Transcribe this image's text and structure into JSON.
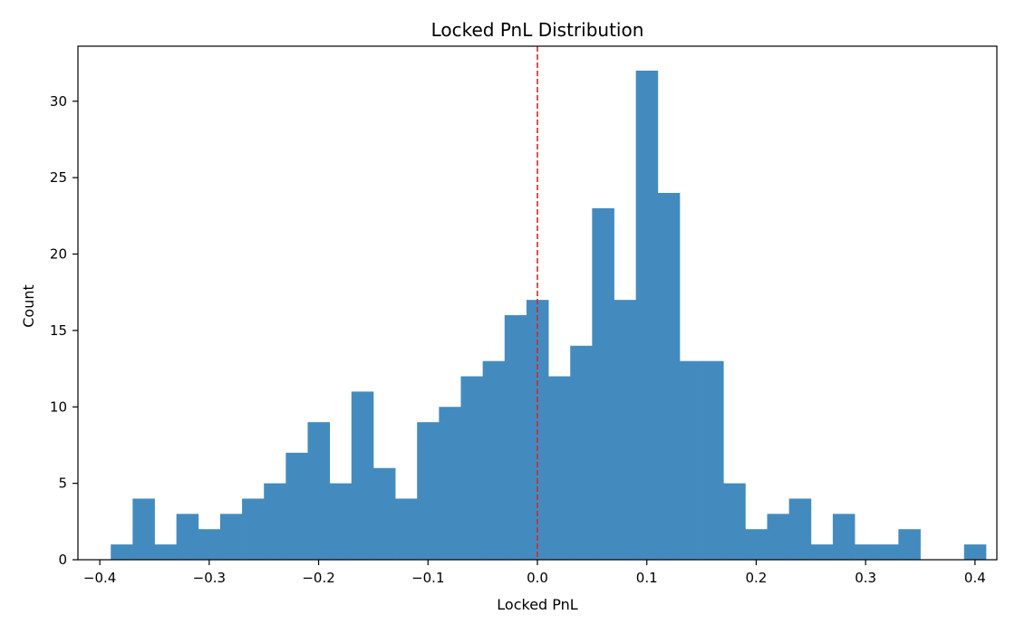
{
  "chart_data": {
    "type": "bar",
    "title": "Locked PnL Distribution",
    "xlabel": "Locked PnL",
    "ylabel": "Count",
    "xlim": [
      -0.42,
      0.42
    ],
    "ylim": [
      0,
      33.6
    ],
    "bin_start": -0.39,
    "bin_width": 0.02,
    "counts": [
      1,
      4,
      1,
      3,
      2,
      3,
      4,
      5,
      7,
      9,
      5,
      11,
      6,
      4,
      9,
      10,
      12,
      13,
      16,
      17,
      12,
      14,
      23,
      17,
      32,
      24,
      13,
      13,
      5,
      2,
      3,
      4,
      1,
      3,
      1,
      1,
      2,
      0,
      0,
      1
    ],
    "xticks": [
      -0.4,
      -0.3,
      -0.2,
      -0.1,
      0.0,
      0.1,
      0.2,
      0.3,
      0.4
    ],
    "xtick_labels": [
      "−0.4",
      "−0.3",
      "−0.2",
      "−0.1",
      "0.0",
      "0.1",
      "0.2",
      "0.3",
      "0.4"
    ],
    "yticks": [
      0,
      5,
      10,
      15,
      20,
      25,
      30
    ],
    "ytick_labels": [
      "0",
      "5",
      "10",
      "15",
      "20",
      "25",
      "30"
    ],
    "reference_line": {
      "x": 0.0,
      "color": "#d62728",
      "style": "dashed"
    },
    "bar_color": "#438bbf",
    "grid": false
  }
}
